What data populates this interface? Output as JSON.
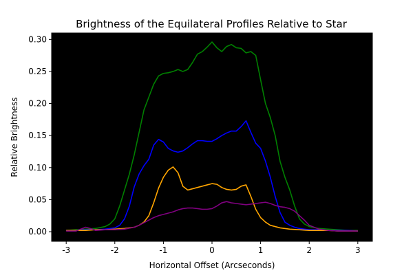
{
  "chart_data": {
    "type": "line",
    "title": "Brightness of the Equilateral Profiles Relative to Star",
    "xlabel": "Horizontal Offset (Arcseconds)",
    "ylabel": "Relative Brightness",
    "xlim": [
      -3.3,
      3.3
    ],
    "ylim": [
      -0.015,
      0.31
    ],
    "xticks": [
      -3,
      -2,
      -1,
      0,
      1,
      2,
      3
    ],
    "yticks": [
      0.0,
      0.05,
      0.1,
      0.15,
      0.2,
      0.25,
      0.3
    ],
    "ytick_labels": [
      "0.00",
      "0.05",
      "0.10",
      "0.15",
      "0.20",
      "0.25",
      "0.30"
    ],
    "plot_background": "#000000",
    "grid": false,
    "series": [
      {
        "color": "#008000",
        "x": [
          -3.0,
          -2.8,
          -2.6,
          -2.4,
          -2.2,
          -2.1,
          -2.0,
          -1.9,
          -1.8,
          -1.7,
          -1.6,
          -1.5,
          -1.4,
          -1.3,
          -1.2,
          -1.1,
          -1.0,
          -0.9,
          -0.8,
          -0.7,
          -0.6,
          -0.5,
          -0.4,
          -0.3,
          -0.2,
          -0.1,
          0.0,
          0.1,
          0.2,
          0.3,
          0.4,
          0.5,
          0.6,
          0.7,
          0.8,
          0.9,
          1.0,
          1.1,
          1.2,
          1.3,
          1.4,
          1.5,
          1.6,
          1.7,
          1.8,
          1.9,
          2.0,
          2.2,
          2.4,
          2.6,
          2.8,
          3.0
        ],
        "y": [
          0.002,
          0.003,
          0.004,
          0.005,
          0.008,
          0.012,
          0.02,
          0.04,
          0.065,
          0.09,
          0.12,
          0.155,
          0.19,
          0.21,
          0.23,
          0.243,
          0.247,
          0.248,
          0.25,
          0.253,
          0.25,
          0.253,
          0.264,
          0.277,
          0.281,
          0.288,
          0.296,
          0.287,
          0.281,
          0.289,
          0.292,
          0.287,
          0.286,
          0.279,
          0.281,
          0.275,
          0.237,
          0.2,
          0.178,
          0.15,
          0.11,
          0.085,
          0.065,
          0.04,
          0.02,
          0.012,
          0.008,
          0.005,
          0.004,
          0.003,
          0.002,
          0.002
        ]
      },
      {
        "color": "#0000ff",
        "x": [
          -3.0,
          -2.8,
          -2.6,
          -2.4,
          -2.2,
          -2.0,
          -1.9,
          -1.8,
          -1.7,
          -1.6,
          -1.5,
          -1.4,
          -1.3,
          -1.2,
          -1.1,
          -1.0,
          -0.9,
          -0.8,
          -0.7,
          -0.6,
          -0.5,
          -0.4,
          -0.3,
          -0.2,
          -0.1,
          0.0,
          0.1,
          0.2,
          0.3,
          0.4,
          0.5,
          0.6,
          0.7,
          0.8,
          0.9,
          1.0,
          1.1,
          1.2,
          1.3,
          1.4,
          1.5,
          1.6,
          1.7,
          1.8,
          1.9,
          2.0,
          2.2,
          2.4,
          2.6,
          2.8,
          3.0
        ],
        "y": [
          0.002,
          0.002,
          0.003,
          0.003,
          0.004,
          0.006,
          0.01,
          0.02,
          0.04,
          0.07,
          0.09,
          0.103,
          0.113,
          0.135,
          0.144,
          0.14,
          0.13,
          0.126,
          0.124,
          0.126,
          0.131,
          0.137,
          0.142,
          0.142,
          0.141,
          0.141,
          0.145,
          0.15,
          0.154,
          0.157,
          0.157,
          0.164,
          0.173,
          0.155,
          0.138,
          0.13,
          0.11,
          0.085,
          0.055,
          0.03,
          0.015,
          0.01,
          0.007,
          0.005,
          0.004,
          0.003,
          0.003,
          0.002,
          0.002,
          0.002,
          0.001
        ]
      },
      {
        "color": "#ffa500",
        "x": [
          -3.0,
          -2.8,
          -2.6,
          -2.4,
          -2.2,
          -2.0,
          -1.8,
          -1.6,
          -1.5,
          -1.4,
          -1.3,
          -1.2,
          -1.1,
          -1.0,
          -0.9,
          -0.8,
          -0.7,
          -0.6,
          -0.5,
          -0.4,
          -0.3,
          -0.2,
          -0.1,
          0.0,
          0.1,
          0.2,
          0.3,
          0.4,
          0.5,
          0.6,
          0.7,
          0.8,
          0.9,
          1.0,
          1.1,
          1.2,
          1.3,
          1.4,
          1.6,
          1.8,
          2.0,
          2.2,
          2.4,
          2.6,
          2.8,
          3.0
        ],
        "y": [
          0.002,
          0.002,
          0.002,
          0.003,
          0.003,
          0.004,
          0.005,
          0.007,
          0.01,
          0.015,
          0.025,
          0.045,
          0.068,
          0.085,
          0.096,
          0.101,
          0.092,
          0.071,
          0.065,
          0.067,
          0.069,
          0.071,
          0.073,
          0.075,
          0.074,
          0.069,
          0.066,
          0.065,
          0.066,
          0.071,
          0.073,
          0.055,
          0.035,
          0.022,
          0.015,
          0.01,
          0.008,
          0.006,
          0.004,
          0.003,
          0.002,
          0.002,
          0.002,
          0.001,
          0.001,
          0.001
        ]
      },
      {
        "color": "#800080",
        "x": [
          -3.0,
          -2.8,
          -2.7,
          -2.6,
          -2.5,
          -2.4,
          -2.2,
          -2.0,
          -1.8,
          -1.6,
          -1.5,
          -1.4,
          -1.3,
          -1.2,
          -1.1,
          -1.0,
          -0.9,
          -0.8,
          -0.7,
          -0.6,
          -0.5,
          -0.4,
          -0.3,
          -0.2,
          -0.1,
          0.0,
          0.1,
          0.2,
          0.3,
          0.4,
          0.5,
          0.6,
          0.7,
          0.8,
          0.9,
          1.0,
          1.1,
          1.2,
          1.3,
          1.4,
          1.5,
          1.6,
          1.7,
          1.8,
          1.9,
          2.0,
          2.2,
          2.4,
          2.6,
          2.8,
          3.0
        ],
        "y": [
          0.001,
          0.001,
          0.004,
          0.007,
          0.005,
          0.002,
          0.003,
          0.003,
          0.004,
          0.007,
          0.01,
          0.014,
          0.018,
          0.022,
          0.025,
          0.027,
          0.029,
          0.031,
          0.034,
          0.036,
          0.037,
          0.037,
          0.036,
          0.035,
          0.035,
          0.036,
          0.04,
          0.045,
          0.047,
          0.045,
          0.044,
          0.043,
          0.042,
          0.043,
          0.044,
          0.045,
          0.046,
          0.044,
          0.041,
          0.039,
          0.038,
          0.036,
          0.032,
          0.025,
          0.018,
          0.01,
          0.004,
          0.002,
          0.001,
          0.001,
          0.001
        ]
      }
    ]
  }
}
